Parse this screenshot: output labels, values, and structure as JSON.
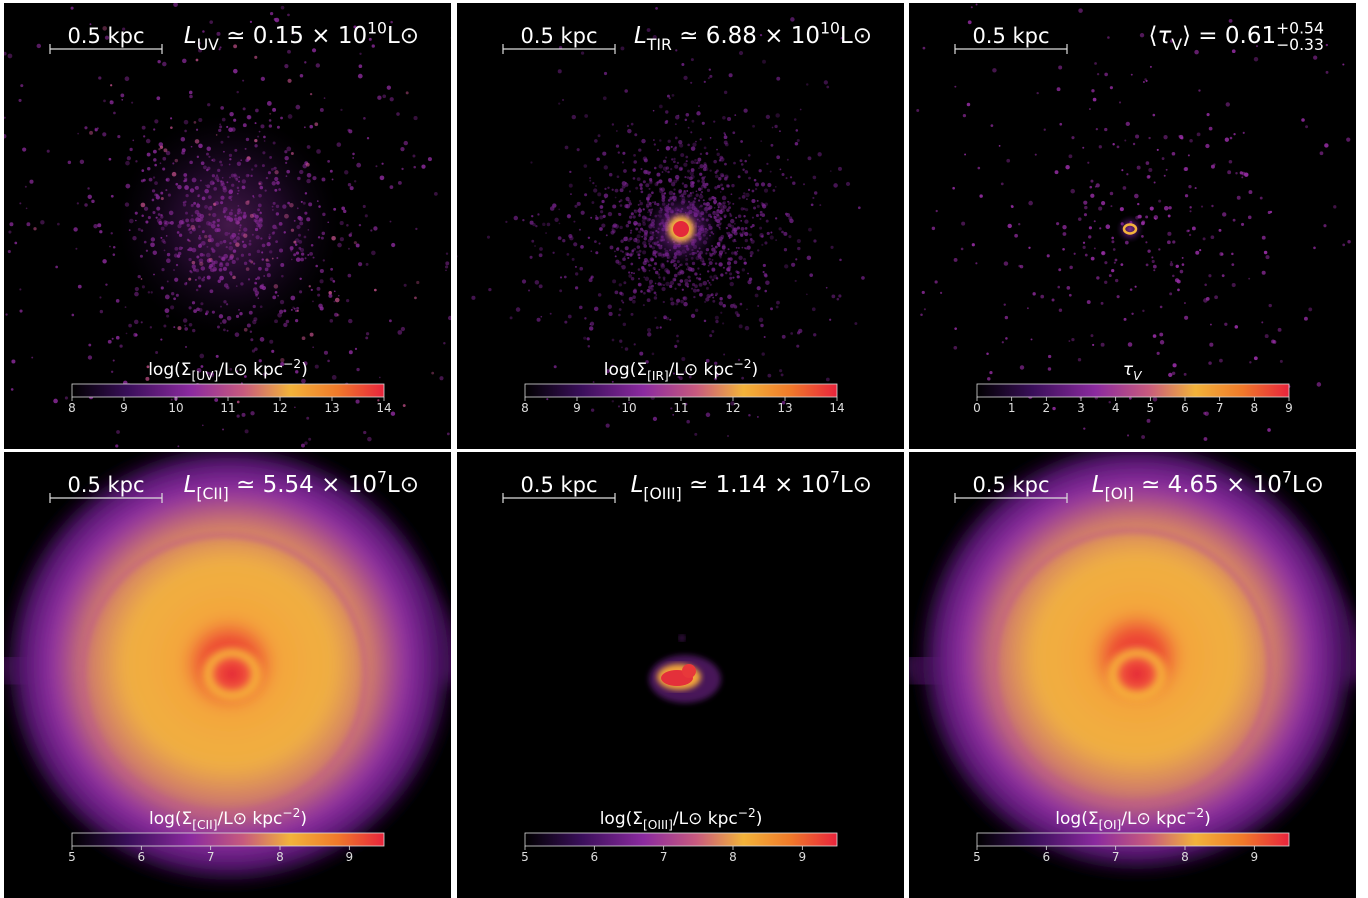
{
  "panels": [
    {
      "scale_bar": "0.5 kpc",
      "annotation": [
        {
          "text": "L",
          "italic": true
        },
        {
          "text": "UV",
          "shift": "sub"
        },
        {
          "text": " ≃ 0.15 × 10"
        },
        {
          "text": "10",
          "shift": "sup"
        },
        {
          "text": "L⊙"
        }
      ],
      "colorbar": {
        "label": [
          {
            "text": "log(Σ"
          },
          {
            "text": "[UV]",
            "shift": "sub"
          },
          {
            "text": "/L⊙ kpc"
          },
          {
            "text": "−2",
            "shift": "sup"
          },
          {
            "text": ")"
          }
        ],
        "lim": [
          8,
          14
        ],
        "ticks": [
          8,
          9,
          10,
          11,
          12,
          13,
          14
        ]
      }
    },
    {
      "scale_bar": "0.5 kpc",
      "annotation": [
        {
          "text": "L",
          "italic": true
        },
        {
          "text": "TIR",
          "shift": "sub"
        },
        {
          "text": " ≃ 6.88 × 10"
        },
        {
          "text": "10",
          "shift": "sup"
        },
        {
          "text": "L⊙"
        }
      ],
      "colorbar": {
        "label": [
          {
            "text": "log(Σ"
          },
          {
            "text": "[IR]",
            "shift": "sub"
          },
          {
            "text": "/L⊙ kpc"
          },
          {
            "text": "−2",
            "shift": "sup"
          },
          {
            "text": ")"
          }
        ],
        "lim": [
          8,
          14
        ],
        "ticks": [
          8,
          9,
          10,
          11,
          12,
          13,
          14
        ]
      }
    },
    {
      "scale_bar": "0.5 kpc",
      "annotation": [
        {
          "text": "⟨"
        },
        {
          "text": "τ",
          "italic": true
        },
        {
          "text": "V",
          "shift": "sub"
        },
        {
          "text": "⟩ = 0.61"
        },
        {
          "text": "+0.54",
          "shift": "sup"
        },
        {
          "text": "−0.33",
          "shift": "sub"
        }
      ],
      "colorbar": {
        "label": [
          {
            "text": "τ",
            "italic": true
          },
          {
            "text": "V",
            "shift": "sub",
            "italic": true
          }
        ],
        "lim": [
          0,
          9
        ],
        "ticks": [
          0,
          1,
          2,
          3,
          4,
          5,
          6,
          7,
          8,
          9
        ]
      }
    },
    {
      "scale_bar": "0.5 kpc",
      "annotation": [
        {
          "text": "L",
          "italic": true
        },
        {
          "text": "[CII]",
          "shift": "sub"
        },
        {
          "text": " ≃ 5.54 × 10"
        },
        {
          "text": "7",
          "shift": "sup"
        },
        {
          "text": "L⊙"
        }
      ],
      "colorbar": {
        "label": [
          {
            "text": "log(Σ"
          },
          {
            "text": "[CII]",
            "shift": "sub"
          },
          {
            "text": "/L⊙ kpc"
          },
          {
            "text": "−2",
            "shift": "sup"
          },
          {
            "text": ")"
          }
        ],
        "lim": [
          5,
          9.5
        ],
        "ticks": [
          5,
          6,
          7,
          8,
          9
        ]
      }
    },
    {
      "scale_bar": "0.5 kpc",
      "annotation": [
        {
          "text": "L",
          "italic": true
        },
        {
          "text": "[OIII]",
          "shift": "sub"
        },
        {
          "text": " ≃ 1.14 × 10"
        },
        {
          "text": "7",
          "shift": "sup"
        },
        {
          "text": "L⊙"
        }
      ],
      "colorbar": {
        "label": [
          {
            "text": "log(Σ"
          },
          {
            "text": "[OIII]",
            "shift": "sub"
          },
          {
            "text": "/L⊙ kpc"
          },
          {
            "text": "−2",
            "shift": "sup"
          },
          {
            "text": ")"
          }
        ],
        "lim": [
          5,
          9.5
        ],
        "ticks": [
          5,
          6,
          7,
          8,
          9
        ]
      }
    },
    {
      "scale_bar": "0.5 kpc",
      "annotation": [
        {
          "text": "L",
          "italic": true
        },
        {
          "text": "[OI]",
          "shift": "sub"
        },
        {
          "text": " ≃ 4.65 × 10"
        },
        {
          "text": "7",
          "shift": "sup"
        },
        {
          "text": "L⊙"
        }
      ],
      "colorbar": {
        "label": [
          {
            "text": "log(Σ"
          },
          {
            "text": "[OI]",
            "shift": "sub"
          },
          {
            "text": "/L⊙ kpc"
          },
          {
            "text": "−2",
            "shift": "sup"
          },
          {
            "text": ")"
          }
        ],
        "lim": [
          5,
          9.5
        ],
        "ticks": [
          5,
          6,
          7,
          8,
          9
        ]
      }
    }
  ]
}
